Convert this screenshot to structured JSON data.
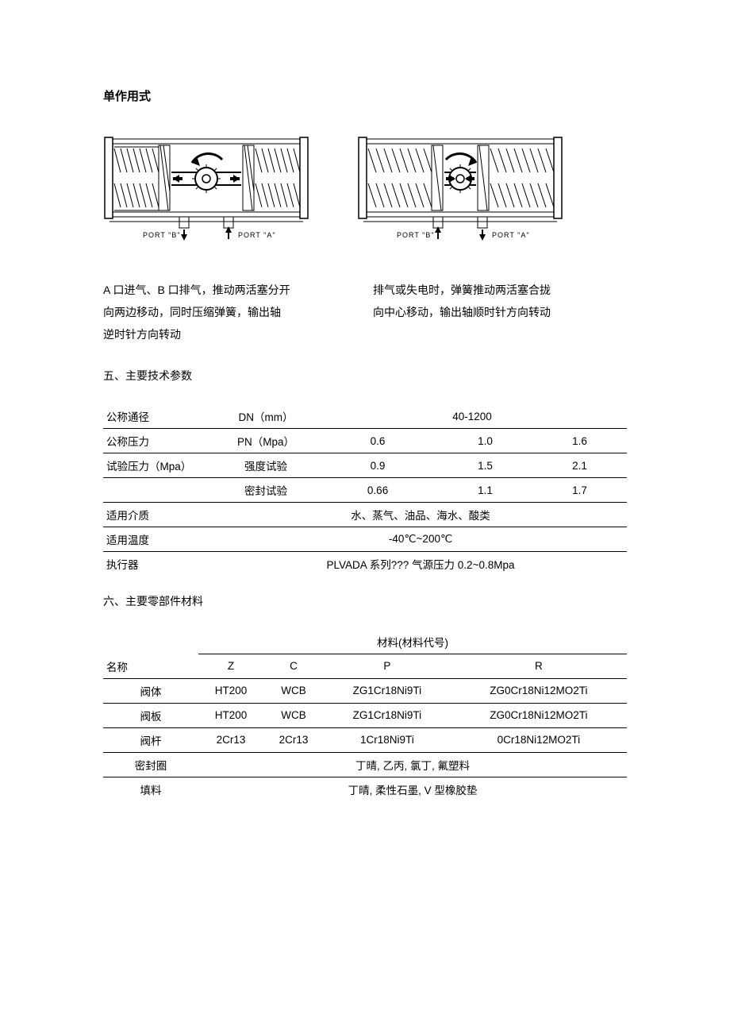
{
  "title": "单作用式",
  "diagrams": {
    "left": {
      "port_b": "PORT \"B\"",
      "port_a": "PORT \"A\""
    },
    "right": {
      "port_b": "PORT \"B\"",
      "port_a": "PORT \"A\""
    },
    "colors": {
      "stroke": "#000000",
      "fill_body": "#ffffff",
      "hatch": "#000000",
      "arrow": "#000000"
    }
  },
  "captions": {
    "left_line1": "A 口进气、B 口排气，推动两活塞分开",
    "left_line2": "向两边移动，同时压缩弹簧，输出轴",
    "left_line3": "逆时针方向转动",
    "right_line1": "排气或失电时，弹簧推动两活塞合拢",
    "right_line2": "向中心移动，输出轴顺时针方向转动"
  },
  "section5_title": "五、主要技术参数",
  "params_table": {
    "rows": [
      {
        "label": "公称通径",
        "param": "DN（mm）",
        "v1": "",
        "v2": "40-1200",
        "v3": "",
        "span_vals": true
      },
      {
        "label": "公称压力",
        "param": "PN（Mpa）",
        "v1": "0.6",
        "v2": "1.0",
        "v3": "1.6"
      },
      {
        "label": "试验压力（Mpa）",
        "param": "强度试验",
        "v1": "0.9",
        "v2": "1.5",
        "v3": "2.1"
      },
      {
        "label": "",
        "param": "密封试验",
        "v1": "0.66",
        "v2": "1.1",
        "v3": "1.7"
      },
      {
        "label": "适用介质",
        "param": "",
        "full": "水、蒸气、油品、海水、酸类"
      },
      {
        "label": "适用温度",
        "param": "",
        "full": "-40℃~200℃"
      },
      {
        "label": "执行器",
        "param": "",
        "full": "PLVADA 系列??? 气源压力 0.2~0.8Mpa",
        "no_underline": true
      }
    ]
  },
  "section6_title": "六、主要零部件材料",
  "materials_table": {
    "header_group": "材料(材料代号)",
    "name_header": "名称",
    "cols": [
      "Z",
      "C",
      "P",
      "R"
    ],
    "rows": [
      {
        "name": "阀体",
        "z": "HT200",
        "c": "WCB",
        "p": "ZG1Cr18Ni9Ti",
        "r": "ZG0Cr18Ni12MO2Ti"
      },
      {
        "name": "阀板",
        "z": "HT200",
        "c": "WCB",
        "p": "ZG1Cr18Ni9Ti",
        "r": "ZG0Cr18Ni12MO2Ti"
      },
      {
        "name": "阀杆",
        "z": "2Cr13",
        "c": "2Cr13",
        "p": "1Cr18Ni9Ti",
        "r": "0Cr18Ni12MO2Ti"
      },
      {
        "name": "密封圈",
        "full": "丁晴, 乙丙, 氯丁, 氟塑料"
      },
      {
        "name": "填料",
        "full": "丁晴, 柔性石墨, V 型橡胶垫",
        "no_underline": true
      }
    ]
  }
}
